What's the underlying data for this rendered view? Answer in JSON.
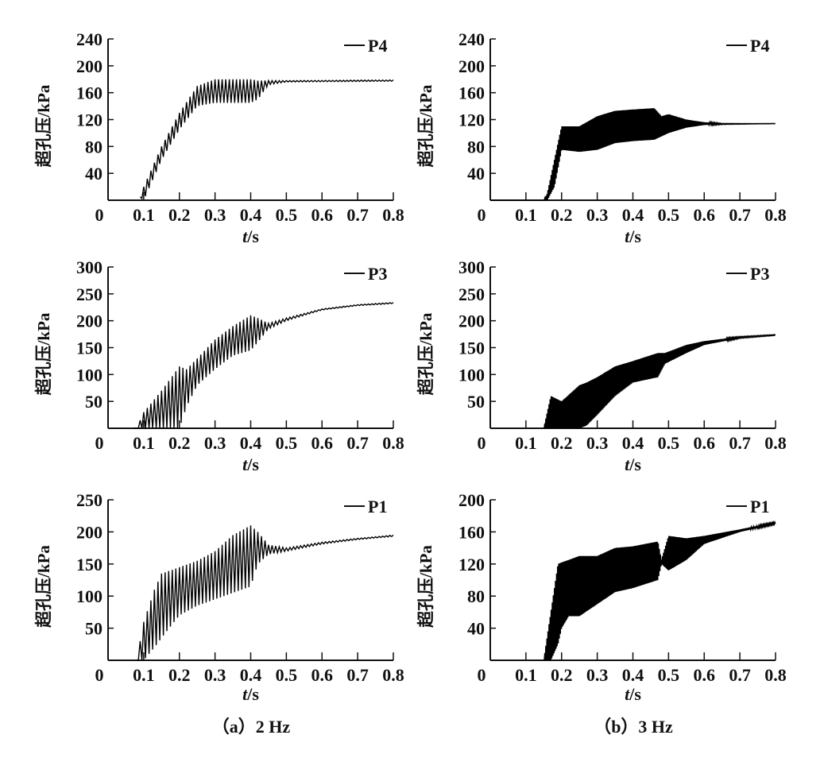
{
  "chart_data": [
    {
      "type": "line",
      "panel": "a",
      "row": 1,
      "xlabel_italic": "t",
      "xlabel_unit": "/s",
      "ylabel": "超孔压/kPa",
      "xlim": [
        0,
        0.8
      ],
      "ylim": [
        0,
        240
      ],
      "xticks": [
        "0",
        "0.1",
        "0.2",
        "0.3",
        "0.4",
        "0.5",
        "0.6",
        "0.7",
        "0.8"
      ],
      "yticks": [
        40,
        80,
        120,
        160,
        200,
        240
      ],
      "legend": "P4",
      "legend_position": "top-right",
      "osc_period": 0.01,
      "t_start": 0.09,
      "envelope": {
        "t": [
          0.09,
          0.1,
          0.15,
          0.2,
          0.25,
          0.3,
          0.35,
          0.4,
          0.42,
          0.45,
          0.5,
          0.8
        ],
        "upper": [
          5,
          20,
          80,
          130,
          170,
          180,
          180,
          180,
          178,
          178,
          178,
          179
        ],
        "lower": [
          5,
          0,
          60,
          105,
          140,
          145,
          145,
          145,
          150,
          172,
          176,
          177
        ]
      }
    },
    {
      "type": "line",
      "panel": "a",
      "row": 2,
      "xlabel_italic": "t",
      "xlabel_unit": "/s",
      "ylabel": "超孔压/kPa",
      "xlim": [
        0,
        0.8
      ],
      "ylim": [
        0,
        300
      ],
      "xticks": [
        "0",
        "0.1",
        "0.2",
        "0.3",
        "0.4",
        "0.5",
        "0.6",
        "0.7",
        "0.8"
      ],
      "yticks": [
        50,
        100,
        150,
        200,
        250,
        300
      ],
      "legend": "P3",
      "legend_position": "top-right",
      "osc_period": 0.01,
      "t_start": 0.07,
      "envelope": {
        "t": [
          0.07,
          0.08,
          0.1,
          0.15,
          0.2,
          0.22,
          0.25,
          0.3,
          0.35,
          0.4,
          0.42,
          0.45,
          0.5,
          0.6,
          0.7,
          0.8
        ],
        "upper": [
          0,
          0,
          30,
          70,
          115,
          110,
          130,
          165,
          190,
          210,
          205,
          195,
          205,
          222,
          230,
          234
        ],
        "lower": [
          0,
          0,
          0,
          0,
          0,
          40,
          80,
          110,
          135,
          145,
          160,
          185,
          200,
          220,
          228,
          232
        ]
      }
    },
    {
      "type": "line",
      "panel": "a",
      "row": 3,
      "xlabel_italic": "t",
      "xlabel_unit": "/s",
      "ylabel": "超孔压/kPa",
      "xlim": [
        0,
        0.8
      ],
      "ylim": [
        0,
        250
      ],
      "xticks": [
        "0",
        "0.1",
        "0.2",
        "0.3",
        "0.4",
        "0.5",
        "0.6",
        "0.7",
        "0.8"
      ],
      "yticks": [
        50,
        100,
        150,
        200,
        250
      ],
      "legend": "P1",
      "legend_position": "top-right",
      "osc_period": 0.01,
      "t_start": 0.08,
      "envelope": {
        "t": [
          0.08,
          0.1,
          0.13,
          0.15,
          0.2,
          0.25,
          0.3,
          0.35,
          0.4,
          0.42,
          0.45,
          0.5,
          0.6,
          0.7,
          0.8
        ],
        "upper": [
          0,
          60,
          110,
          135,
          145,
          155,
          170,
          195,
          210,
          200,
          180,
          175,
          184,
          190,
          195
        ],
        "lower": [
          0,
          0,
          20,
          35,
          70,
          85,
          95,
          105,
          115,
          150,
          165,
          170,
          181,
          188,
          193
        ]
      }
    },
    {
      "type": "line",
      "panel": "b",
      "row": 1,
      "xlabel_italic": "t",
      "xlabel_unit": "/s",
      "ylabel": "超孔压/kPa",
      "xlim": [
        0,
        0.8
      ],
      "ylim": [
        0,
        240
      ],
      "xticks": [
        "0",
        "0.1",
        "0.2",
        "0.3",
        "0.4",
        "0.5",
        "0.6",
        "0.7",
        "0.8"
      ],
      "yticks": [
        40,
        80,
        120,
        160,
        200,
        240
      ],
      "legend": "P4",
      "legend_position": "top-right",
      "osc_period": 0.003,
      "t_start": 0,
      "envelope": {
        "t": [
          0,
          0.15,
          0.16,
          0.18,
          0.2,
          0.25,
          0.3,
          0.35,
          0.4,
          0.46,
          0.48,
          0.5,
          0.55,
          0.6,
          0.65,
          0.8
        ],
        "upper": [
          0,
          0,
          10,
          60,
          110,
          110,
          125,
          133,
          135,
          137,
          125,
          128,
          120,
          116,
          114,
          114
        ],
        "lower": [
          0,
          0,
          0,
          20,
          75,
          72,
          75,
          85,
          88,
          90,
          95,
          100,
          108,
          112,
          113,
          114
        ]
      }
    },
    {
      "type": "line",
      "panel": "b",
      "row": 2,
      "xlabel_italic": "t",
      "xlabel_unit": "/s",
      "ylabel": "超孔压/kPa",
      "xlim": [
        0,
        0.8
      ],
      "ylim": [
        0,
        300
      ],
      "xticks": [
        "0",
        "0.1",
        "0.2",
        "0.3",
        "0.4",
        "0.5",
        "0.6",
        "0.7",
        "0.8"
      ],
      "yticks": [
        50,
        100,
        150,
        200,
        250,
        300
      ],
      "legend": "P3",
      "legend_position": "top-right",
      "osc_period": 0.003,
      "t_start": 0.15,
      "envelope": {
        "t": [
          0.15,
          0.17,
          0.2,
          0.25,
          0.27,
          0.3,
          0.35,
          0.4,
          0.47,
          0.49,
          0.55,
          0.6,
          0.7,
          0.8
        ],
        "upper": [
          0,
          60,
          50,
          80,
          85,
          95,
          115,
          125,
          140,
          140,
          155,
          162,
          170,
          174
        ],
        "lower": [
          0,
          0,
          0,
          0,
          5,
          25,
          60,
          85,
          95,
          120,
          140,
          155,
          168,
          173
        ]
      }
    },
    {
      "type": "line",
      "panel": "b",
      "row": 3,
      "xlabel_italic": "t",
      "xlabel_unit": "/s",
      "ylabel": "超孔压/kPa",
      "xlim": [
        0,
        0.8
      ],
      "ylim": [
        0,
        200
      ],
      "xticks": [
        "0",
        "0.1",
        "0.2",
        "0.3",
        "0.4",
        "0.5",
        "0.6",
        "0.7",
        "0.8"
      ],
      "yticks": [
        40,
        80,
        120,
        160,
        200
      ],
      "legend": "P1",
      "legend_position": "top-right",
      "osc_period": 0.003,
      "t_start": 0.15,
      "envelope": {
        "t": [
          0.15,
          0.17,
          0.19,
          0.2,
          0.22,
          0.25,
          0.3,
          0.35,
          0.4,
          0.47,
          0.48,
          0.5,
          0.55,
          0.6,
          0.7,
          0.8
        ],
        "upper": [
          0,
          60,
          120,
          122,
          125,
          130,
          130,
          140,
          142,
          148,
          125,
          155,
          152,
          155,
          163,
          172
        ],
        "lower": [
          0,
          0,
          20,
          40,
          55,
          55,
          70,
          85,
          90,
          100,
          120,
          112,
          125,
          145,
          160,
          170
        ]
      }
    }
  ],
  "captions": {
    "a": "（a）2 Hz",
    "b": "（b）3 Hz"
  }
}
